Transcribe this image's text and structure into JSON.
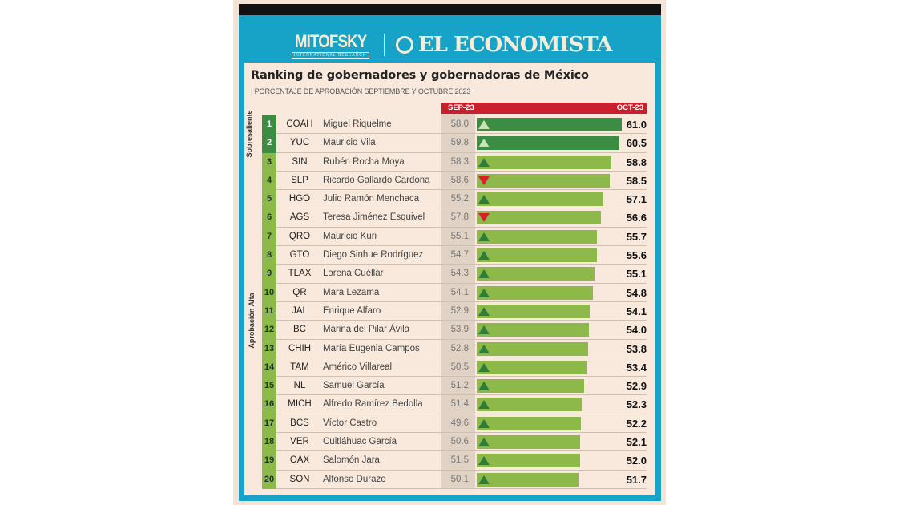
{
  "brand": {
    "left": "MITOFSKY",
    "left_tagline": "INTERNATIONAL RESEARCH",
    "right": "EL ECONOMISTA"
  },
  "chart_data": {
    "type": "table",
    "title": "Ranking de gobernadores y gobernadoras de México",
    "subtitle": "PORCENTAJE DE APROBACIÓN SEPTIEMBRE Y OCTUBRE 2023",
    "columns": {
      "prev": "SEP-23",
      "curr": "OCT-23"
    },
    "groups": [
      {
        "label": "Sobresaliente",
        "ranks": [
          1,
          2
        ]
      },
      {
        "label": "Aprobación Alta",
        "ranks": [
          3,
          20
        ]
      }
    ],
    "colors": {
      "sobresaliente": "#3c8c44",
      "alta": "#8db84a",
      "up": "#2e7d3a",
      "down": "#d8202a",
      "header": "#c8202c"
    },
    "rows": [
      {
        "rank": "1",
        "state": "COAH",
        "name": "Miguel Riquelme",
        "sep": "58.0",
        "oct": "61.0",
        "trend": "up"
      },
      {
        "rank": "2",
        "state": "YUC",
        "name": "Mauricio Vila",
        "sep": "59.8",
        "oct": "60.5",
        "trend": "up"
      },
      {
        "rank": "3",
        "state": "SIN",
        "name": "Rubén Rocha Moya",
        "sep": "58.3",
        "oct": "58.8",
        "trend": "up"
      },
      {
        "rank": "4",
        "state": "SLP",
        "name": "Ricardo Gallardo Cardona",
        "sep": "58.6",
        "oct": "58.5",
        "trend": "down"
      },
      {
        "rank": "5",
        "state": "HGO",
        "name": "Julio Ramón Menchaca",
        "sep": "55.2",
        "oct": "57.1",
        "trend": "up"
      },
      {
        "rank": "6",
        "state": "AGS",
        "name": "Teresa Jiménez Esquivel",
        "sep": "57.8",
        "oct": "56.6",
        "trend": "down"
      },
      {
        "rank": "7",
        "state": "QRO",
        "name": "Mauricio Kuri",
        "sep": "55.1",
        "oct": "55.7",
        "trend": "up"
      },
      {
        "rank": "8",
        "state": "GTO",
        "name": "Diego Sinhue Rodríguez",
        "sep": "54.7",
        "oct": "55.6",
        "trend": "up"
      },
      {
        "rank": "9",
        "state": "TLAX",
        "name": "Lorena Cuéllar",
        "sep": "54.3",
        "oct": "55.1",
        "trend": "up"
      },
      {
        "rank": "10",
        "state": "QR",
        "name": "Mara Lezama",
        "sep": "54.1",
        "oct": "54.8",
        "trend": "up"
      },
      {
        "rank": "11",
        "state": "JAL",
        "name": "Enrique Alfaro",
        "sep": "52.9",
        "oct": "54.1",
        "trend": "up"
      },
      {
        "rank": "12",
        "state": "BC",
        "name": "Marina del Pilar Ávila",
        "sep": "53.9",
        "oct": "54.0",
        "trend": "up"
      },
      {
        "rank": "13",
        "state": "CHIH",
        "name": "María Eugenia Campos",
        "sep": "52.8",
        "oct": "53.8",
        "trend": "up"
      },
      {
        "rank": "14",
        "state": "TAM",
        "name": "Américo Villareal",
        "sep": "50.5",
        "oct": "53.4",
        "trend": "up"
      },
      {
        "rank": "15",
        "state": "NL",
        "name": "Samuel García",
        "sep": "51.2",
        "oct": "52.9",
        "trend": "up"
      },
      {
        "rank": "16",
        "state": "MICH",
        "name": "Alfredo Ramírez Bedolla",
        "sep": "51.4",
        "oct": "52.3",
        "trend": "up"
      },
      {
        "rank": "17",
        "state": "BCS",
        "name": "Víctor Castro",
        "sep": "49.6",
        "oct": "52.2",
        "trend": "up"
      },
      {
        "rank": "18",
        "state": "VER",
        "name": "Cuitláhuac García",
        "sep": "50.6",
        "oct": "52.1",
        "trend": "up"
      },
      {
        "rank": "19",
        "state": "OAX",
        "name": "Salomón Jara",
        "sep": "51.5",
        "oct": "52.0",
        "trend": "up"
      },
      {
        "rank": "20",
        "state": "SON",
        "name": "Alfonso Durazo",
        "sep": "50.1",
        "oct": "51.7",
        "trend": "up"
      }
    ]
  }
}
